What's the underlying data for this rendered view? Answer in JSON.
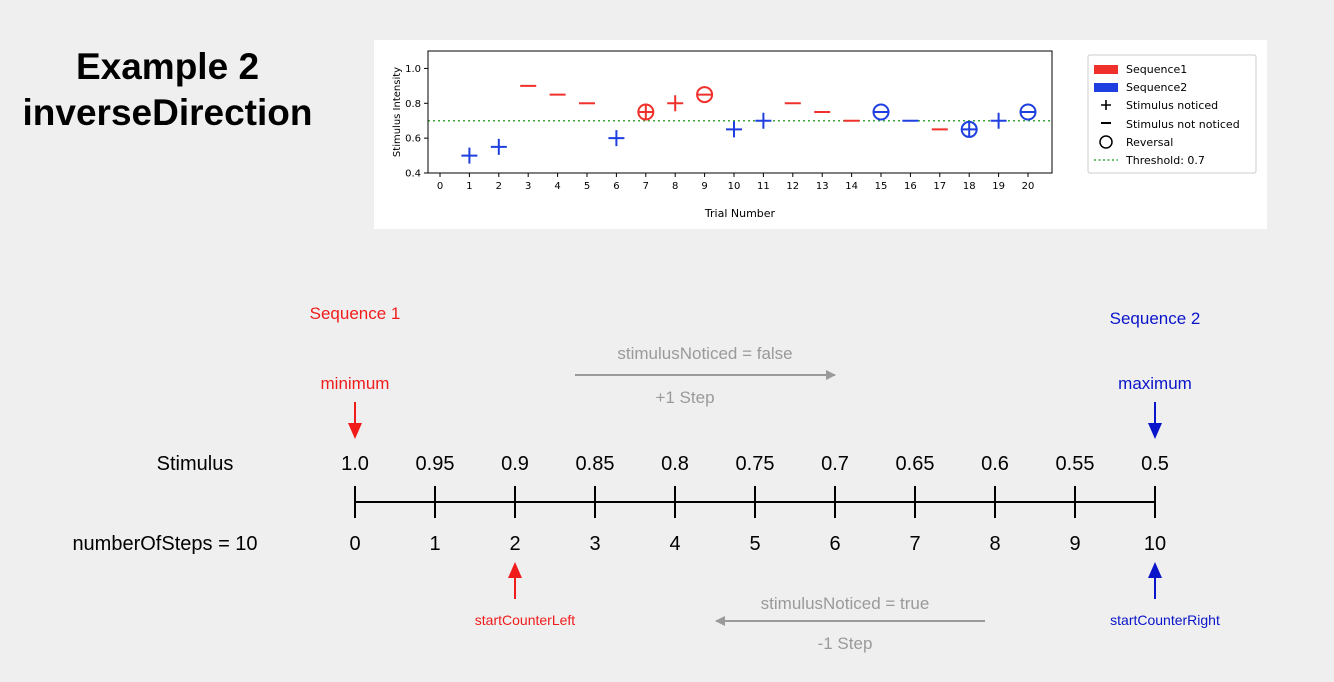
{
  "title": {
    "line1": "Example 2",
    "line2": "inverseDirection"
  },
  "chart_data": {
    "type": "scatter",
    "xlabel": "Trial Number",
    "ylabel": "Stimulus Intensity",
    "xlim": [
      0,
      21
    ],
    "ylim": [
      0.4,
      1.1
    ],
    "xticks": [
      0,
      1,
      2,
      3,
      4,
      5,
      6,
      7,
      8,
      9,
      10,
      11,
      12,
      13,
      14,
      15,
      16,
      17,
      18,
      19,
      20
    ],
    "yticks": [
      0.4,
      0.6,
      0.8,
      1.0
    ],
    "ytick_labels": [
      "0.4",
      "0.6",
      "0.8",
      "1.0"
    ],
    "threshold": {
      "label": "Threshold: 0.7",
      "value": 0.7,
      "color": "#3aa83a"
    },
    "legend": {
      "placement": "right",
      "entries": [
        {
          "key": "seq1",
          "label": "Sequence1"
        },
        {
          "key": "seq2",
          "label": "Sequence2"
        },
        {
          "key": "noticed",
          "label": "Stimulus noticed"
        },
        {
          "key": "not_noticed",
          "label": "Stimulus not noticed"
        },
        {
          "key": "reversal",
          "label": "Reversal"
        },
        {
          "key": "threshold",
          "label": "Threshold: 0.7"
        }
      ]
    },
    "colors": {
      "seq1": "#f0302a",
      "seq2": "#1f3fe0"
    },
    "points": [
      {
        "x": 1,
        "y": 0.5,
        "seq": 2,
        "noticed": true,
        "reversal": false
      },
      {
        "x": 2,
        "y": 0.55,
        "seq": 2,
        "noticed": true,
        "reversal": false
      },
      {
        "x": 3,
        "y": 0.9,
        "seq": 1,
        "noticed": false,
        "reversal": false
      },
      {
        "x": 4,
        "y": 0.85,
        "seq": 1,
        "noticed": false,
        "reversal": false
      },
      {
        "x": 5,
        "y": 0.8,
        "seq": 1,
        "noticed": false,
        "reversal": false
      },
      {
        "x": 6,
        "y": 0.6,
        "seq": 2,
        "noticed": true,
        "reversal": false
      },
      {
        "x": 7,
        "y": 0.75,
        "seq": 1,
        "noticed": true,
        "reversal": true
      },
      {
        "x": 8,
        "y": 0.8,
        "seq": 1,
        "noticed": true,
        "reversal": false
      },
      {
        "x": 9,
        "y": 0.85,
        "seq": 1,
        "noticed": false,
        "reversal": true
      },
      {
        "x": 10,
        "y": 0.65,
        "seq": 2,
        "noticed": true,
        "reversal": false
      },
      {
        "x": 11,
        "y": 0.7,
        "seq": 2,
        "noticed": true,
        "reversal": false
      },
      {
        "x": 12,
        "y": 0.8,
        "seq": 1,
        "noticed": false,
        "reversal": false
      },
      {
        "x": 13,
        "y": 0.75,
        "seq": 1,
        "noticed": false,
        "reversal": false
      },
      {
        "x": 14,
        "y": 0.7,
        "seq": 1,
        "noticed": false,
        "reversal": false
      },
      {
        "x": 15,
        "y": 0.75,
        "seq": 2,
        "noticed": false,
        "reversal": true
      },
      {
        "x": 16,
        "y": 0.7,
        "seq": 2,
        "noticed": false,
        "reversal": false
      },
      {
        "x": 17,
        "y": 0.65,
        "seq": 1,
        "noticed": false,
        "reversal": false
      },
      {
        "x": 18,
        "y": 0.65,
        "seq": 2,
        "noticed": true,
        "reversal": true
      },
      {
        "x": 19,
        "y": 0.7,
        "seq": 2,
        "noticed": true,
        "reversal": false
      },
      {
        "x": 20,
        "y": 0.75,
        "seq": 2,
        "noticed": false,
        "reversal": true
      }
    ]
  },
  "diagram": {
    "sequence1_label": "Sequence 1",
    "sequence2_label": "Sequence 2",
    "minimum_label": "minimum",
    "maximum_label": "maximum",
    "stimulus_row_label": "Stimulus",
    "steps_row_label": "numberOfSteps = 10",
    "stimulus_values": [
      "1.0",
      "0.95",
      "0.9",
      "0.85",
      "0.8",
      "0.75",
      "0.7",
      "0.65",
      "0.6",
      "0.55",
      "0.5"
    ],
    "step_values": [
      "0",
      "1",
      "2",
      "3",
      "4",
      "5",
      "6",
      "7",
      "8",
      "9",
      "10"
    ],
    "top_arrow": {
      "label": "stimulusNoticed = false",
      "step": "+1 Step"
    },
    "bottom_arrow": {
      "label": "stimulusNoticed = true",
      "step": "-1 Step"
    },
    "start_left_label": "startCounterLeft",
    "start_right_label": "startCounterRight",
    "colors": {
      "red": "#f01c1c",
      "blue": "#0a14c8",
      "gray": "#9a9a9a"
    }
  }
}
